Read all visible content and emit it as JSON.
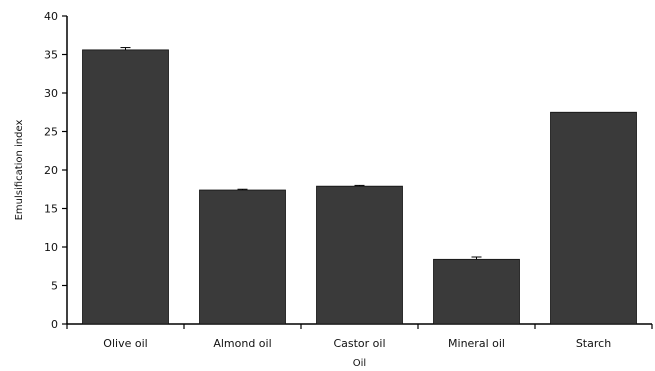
{
  "chart_data": {
    "type": "bar",
    "categories": [
      "Olive oil",
      "Almond oil",
      "Castor oil",
      "Mineral oil",
      "Starch"
    ],
    "values": [
      35.6,
      17.4,
      17.9,
      8.4,
      27.5
    ],
    "errors": [
      0.3,
      0.1,
      0.1,
      0.3,
      0
    ],
    "xlabel": "Oil",
    "ylabel": "Emulsification index",
    "ylim": [
      0,
      40
    ],
    "yticks": [
      0,
      5,
      10,
      15,
      20,
      25,
      30,
      35,
      40
    ],
    "grid": false,
    "legend": "none",
    "colors": {
      "bar": "#3a3a3a",
      "axis": "#000000"
    }
  }
}
